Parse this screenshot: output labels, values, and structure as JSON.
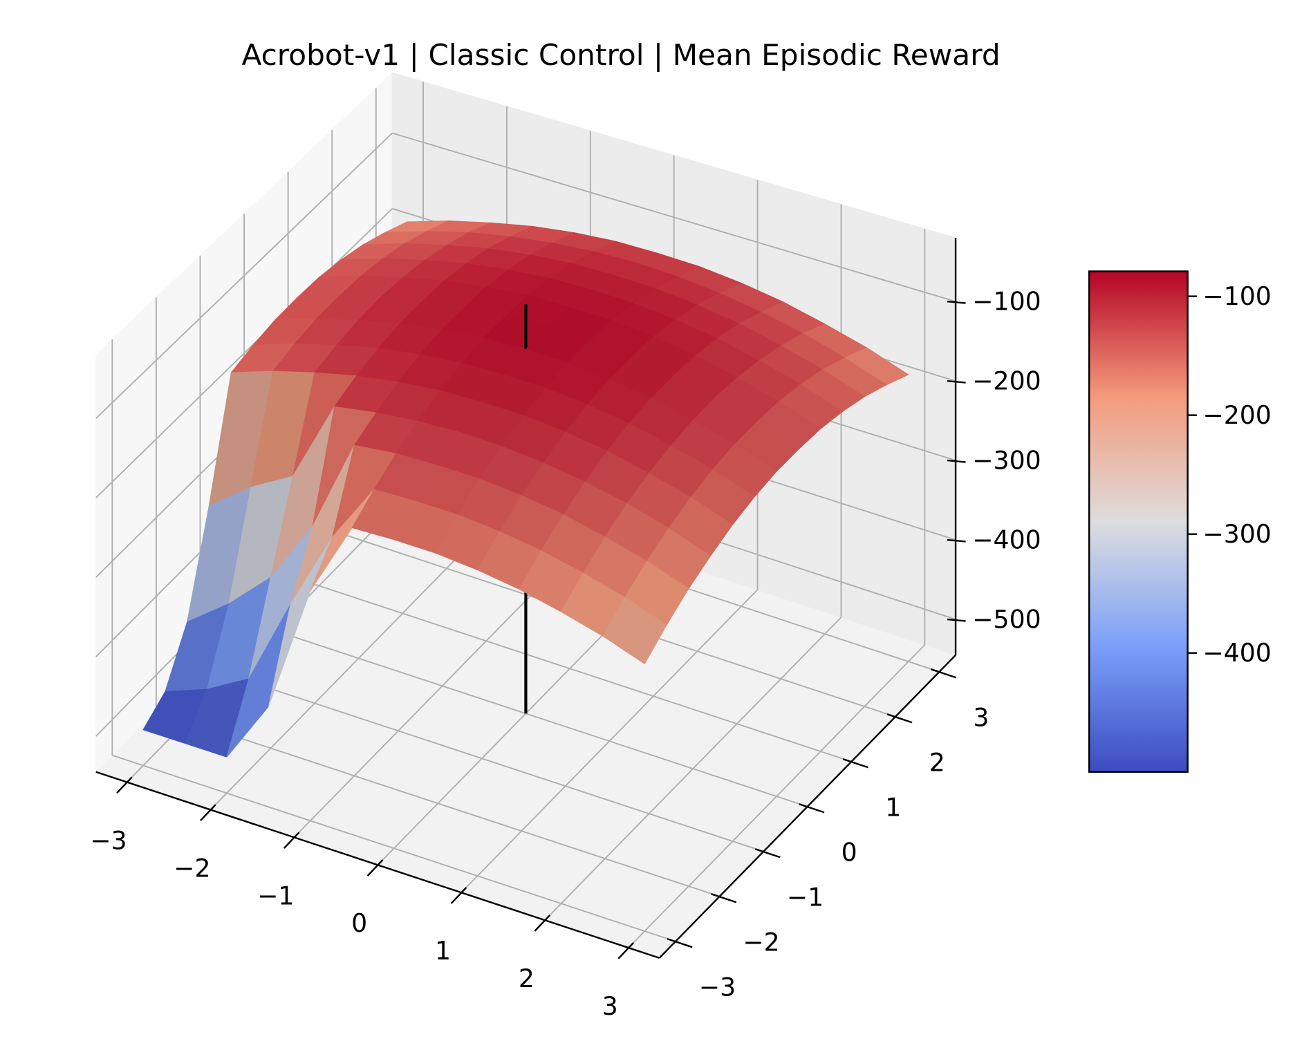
{
  "chart_data": {
    "type": "surface3d",
    "title": "Acrobot-v1 | Classic Control | Mean Episodic Reward",
    "x": [
      -3,
      -2.5,
      -2,
      -1.5,
      -1,
      -0.5,
      0,
      0.5,
      1,
      1.5,
      2,
      2.5,
      3
    ],
    "y": [
      -3,
      -2.5,
      -2,
      -1.5,
      -1,
      -0.5,
      0,
      0.5,
      1,
      1.5,
      2,
      2.5,
      3
    ],
    "z": [
      [
        -500,
        -500,
        -500,
        -420,
        -260,
        -166,
        -165,
        -166,
        -171,
        -179,
        -191,
        -205,
        -223
      ],
      [
        -480,
        -460,
        -430,
        -320,
        -220,
        -145,
        -144,
        -145,
        -150,
        -158,
        -170,
        -184,
        -202
      ],
      [
        -420,
        -380,
        -330,
        -250,
        -132,
        -127,
        -126,
        -127,
        -132,
        -140,
        -152,
        -166,
        -184
      ],
      [
        -300,
        -260,
        -230,
        -126,
        -118,
        -113,
        -111,
        -113,
        -118,
        -126,
        -137,
        -152,
        -170
      ],
      [
        -158,
        -140,
        -126,
        -114,
        -106,
        -101,
        -100,
        -101,
        -106,
        -114,
        -126,
        -140,
        -158
      ],
      [
        -150,
        -132,
        -118,
        -106,
        -98,
        -93,
        -92,
        -93,
        -98,
        -106,
        -118,
        -132,
        -150
      ],
      [
        -145,
        -127,
        -113,
        -101,
        -93,
        -88,
        -87,
        -88,
        -93,
        -101,
        -113,
        -127,
        -145
      ],
      [
        -144,
        -126,
        -111,
        -100,
        -92,
        -87,
        -85,
        -87,
        -92,
        -100,
        -111,
        -126,
        -144
      ],
      [
        -145,
        -127,
        -113,
        -101,
        -93,
        -88,
        -87,
        -88,
        -93,
        -101,
        -113,
        -127,
        -145
      ],
      [
        -150,
        -132,
        -118,
        -106,
        -98,
        -93,
        -92,
        -93,
        -98,
        -106,
        -118,
        -132,
        -150
      ],
      [
        -158,
        -140,
        -126,
        -114,
        -106,
        -101,
        -100,
        -101,
        -106,
        -114,
        -126,
        -140,
        -158
      ],
      [
        -170,
        -152,
        -137,
        -126,
        -118,
        -113,
        -111,
        -113,
        -118,
        -126,
        -137,
        -152,
        -170
      ],
      [
        -184,
        -166,
        -152,
        -140,
        -132,
        -127,
        -126,
        -127,
        -132,
        -140,
        -152,
        -166,
        -184
      ]
    ],
    "reference_line": {
      "x": 0,
      "y": 0,
      "z": [
        -545,
        -30
      ]
    },
    "xlim": [
      -3.37,
      3.37
    ],
    "ylim": [
      -3.37,
      3.37
    ],
    "zlim": [
      -545,
      -20
    ],
    "xticks": [
      {
        "value": -3,
        "label": "−3"
      },
      {
        "value": -2,
        "label": "−2"
      },
      {
        "value": -1,
        "label": "−1"
      },
      0,
      1,
      2,
      3
    ],
    "yticks": [
      {
        "value": -3,
        "label": "−3"
      },
      {
        "value": -2,
        "label": "−2"
      },
      {
        "value": -1,
        "label": "−1"
      },
      0,
      1,
      2,
      3
    ],
    "zticks": [
      {
        "value": -500,
        "label": "−500"
      },
      {
        "value": -400,
        "label": "−400"
      },
      {
        "value": -300,
        "label": "−300"
      },
      {
        "value": -200,
        "label": "−200"
      },
      {
        "value": -100,
        "label": "−100"
      }
    ],
    "colormap": [
      "#3b4cc0",
      "#7b9ff9",
      "#dddddd",
      "#f49a7b",
      "#b40426"
    ],
    "clim": [
      -500,
      -79
    ],
    "cbar_ticks": [
      {
        "value": -400,
        "label": "−400"
      },
      {
        "value": -300,
        "label": "−300"
      },
      {
        "value": -200,
        "label": "−200"
      },
      {
        "value": -100,
        "label": "−100"
      }
    ],
    "grid": true
  }
}
